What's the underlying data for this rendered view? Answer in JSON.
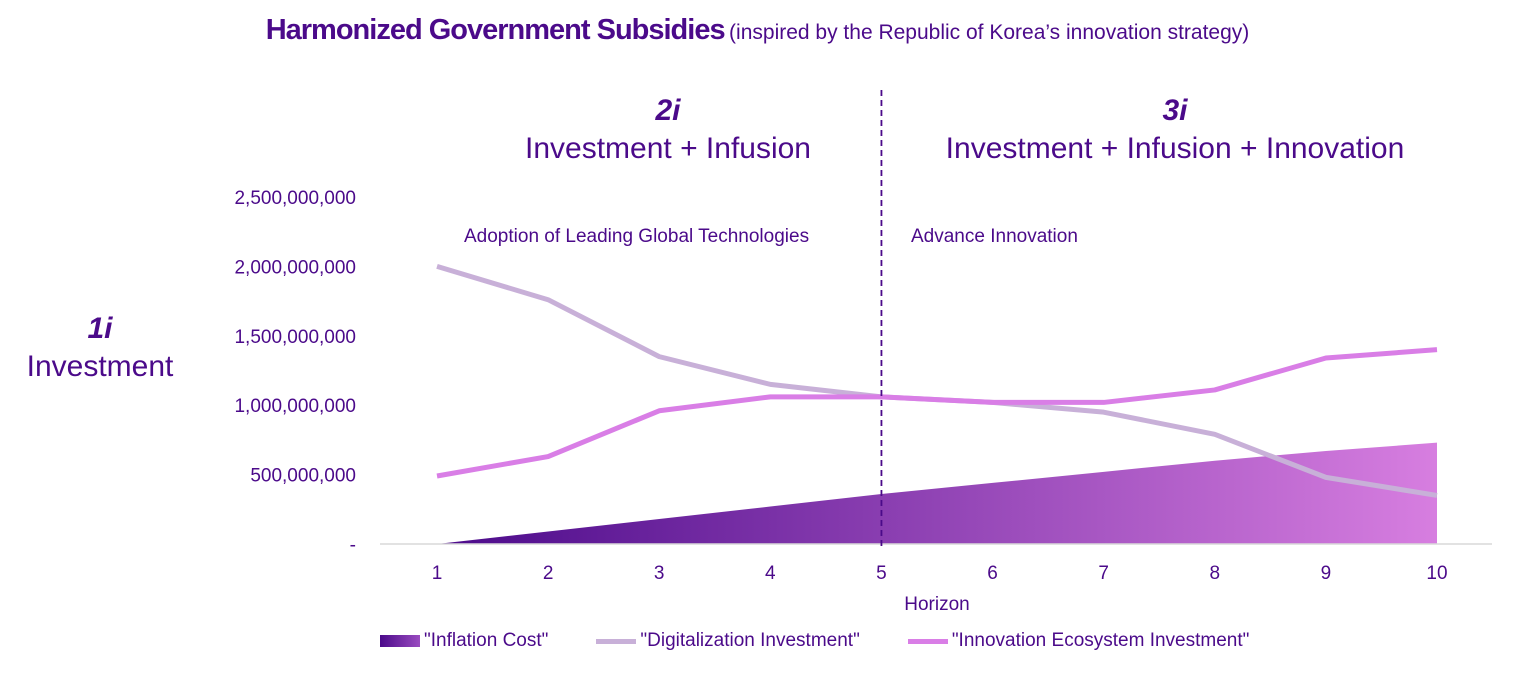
{
  "chart_data": {
    "type": "line",
    "title": "Harmonized Government Subsidies",
    "subtitle": "(inspired by the Republic of Korea’s innovation strategy)",
    "xlabel": "Horizon",
    "ylabel": "",
    "x": [
      1,
      2,
      3,
      4,
      5,
      6,
      7,
      8,
      9,
      10
    ],
    "ylim": [
      0,
      2500000000
    ],
    "yticks": [
      0,
      500000000,
      1000000000,
      1500000000,
      2000000000,
      2500000000
    ],
    "ytick_labels": [
      "-",
      "500,000,000",
      "1,000,000,000",
      "1,500,000,000",
      "2,000,000,000",
      "2,500,000,000"
    ],
    "series": [
      {
        "name": "\"Inflation Cost\"",
        "kind": "area",
        "color": "#4b0a8a",
        "color_end": "#d77ee0",
        "values": [
          0,
          90000000,
          180000000,
          270000000,
          360000000,
          440000000,
          520000000,
          600000000,
          670000000,
          730000000
        ]
      },
      {
        "name": "\"Digitalization Investment\"",
        "kind": "line",
        "color": "#c8b0d8",
        "values": [
          2000000000,
          1760000000,
          1350000000,
          1150000000,
          1060000000,
          1020000000,
          950000000,
          790000000,
          480000000,
          350000000
        ]
      },
      {
        "name": "\"Innovation Ecosystem Investment\"",
        "kind": "line",
        "color": "#d97ee6",
        "values": [
          490000000,
          630000000,
          960000000,
          1060000000,
          1060000000,
          1020000000,
          1020000000,
          1110000000,
          1340000000,
          1400000000
        ]
      }
    ],
    "divider_x": 5,
    "annotations": {
      "phase1_label": "1i",
      "phase1_text": "Investment",
      "phase2_label": "2i",
      "phase2_text": "Investment + Infusion",
      "phase3_label": "3i",
      "phase3_text": "Investment + Infusion + Innovation",
      "left_note": "Adoption of Leading Global Technologies",
      "right_note": "Advance Innovation"
    },
    "legend_position": "bottom",
    "grid": false
  }
}
